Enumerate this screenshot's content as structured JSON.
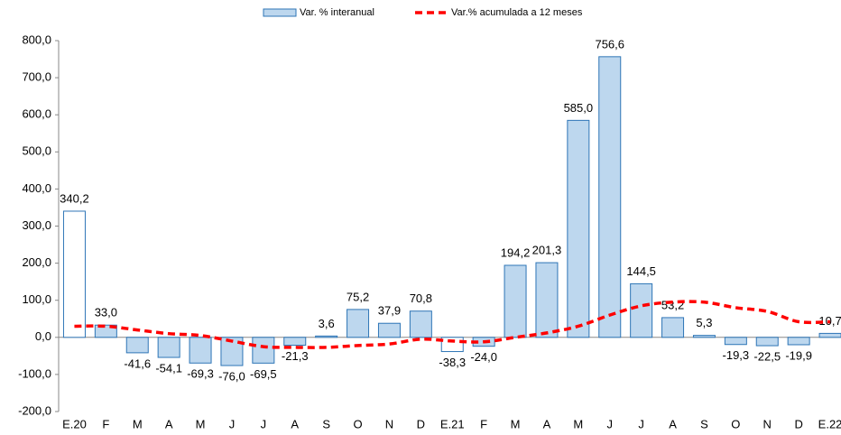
{
  "chart_data": {
    "type": "bar",
    "categories": [
      "E.20",
      "F",
      "M",
      "A",
      "M",
      "J",
      "J",
      "A",
      "S",
      "O",
      "N",
      "D",
      "E.21",
      "F",
      "M",
      "A",
      "M",
      "J",
      "J",
      "A",
      "S",
      "O",
      "N",
      "D",
      "E.22"
    ],
    "series": [
      {
        "name": "Var. % interanual",
        "type": "bar",
        "color": "#bdd7ee",
        "edge_color": "#2e75b6",
        "colors": [
          "#ffffff",
          "#bdd7ee",
          "#bdd7ee",
          "#bdd7ee",
          "#bdd7ee",
          "#bdd7ee",
          "#bdd7ee",
          "#bdd7ee",
          "#bdd7ee",
          "#bdd7ee",
          "#bdd7ee",
          "#bdd7ee",
          "#ffffff",
          "#bdd7ee",
          "#bdd7ee",
          "#bdd7ee",
          "#bdd7ee",
          "#bdd7ee",
          "#bdd7ee",
          "#bdd7ee",
          "#bdd7ee",
          "#bdd7ee",
          "#bdd7ee",
          "#bdd7ee",
          "#bdd7ee"
        ],
        "values": [
          340.2,
          33.0,
          -41.6,
          -54.1,
          -69.3,
          -76.0,
          -69.5,
          -21.3,
          3.6,
          75.2,
          37.9,
          70.8,
          -38.3,
          -24.0,
          194.2,
          201.3,
          585.0,
          756.6,
          144.5,
          53.2,
          5.3,
          -19.3,
          -22.5,
          -19.9,
          10.7
        ],
        "value_labels": [
          "340,2",
          "33,0",
          "-41,6",
          "-54,1",
          "-69,3",
          "-76,0",
          "-69,5",
          "-21,3",
          "3,6",
          "75,2",
          "37,9",
          "70,8",
          "-38,3",
          "-24,0",
          "194,2",
          "201,3",
          "585,0",
          "756,6",
          "144,5",
          "53,2",
          "5,3",
          "-19,3",
          "-22,5",
          "-19,9",
          "10,7"
        ]
      },
      {
        "name": "Var.% acumulada a 12 meses",
        "type": "line",
        "color": "#ff0000",
        "dashed": true,
        "values": [
          30,
          30,
          20,
          10,
          5,
          -10,
          -25,
          -27,
          -27,
          -22,
          -18,
          -5,
          -10,
          -12,
          0,
          12,
          30,
          60,
          85,
          95,
          95,
          80,
          70,
          42,
          42
        ]
      }
    ],
    "ylim": [
      -200,
      800
    ],
    "yticks": [
      {
        "value": -200,
        "label": "-200,0"
      },
      {
        "value": -100,
        "label": "-100,0"
      },
      {
        "value": 0,
        "label": "0,0"
      },
      {
        "value": 100,
        "label": "100,0"
      },
      {
        "value": 200,
        "label": "200,0"
      },
      {
        "value": 300,
        "label": "300,0"
      },
      {
        "value": 400,
        "label": "400,0"
      },
      {
        "value": 500,
        "label": "500,0"
      },
      {
        "value": 600,
        "label": "600,0"
      },
      {
        "value": 700,
        "label": "700,0"
      },
      {
        "value": 800,
        "label": "800,0"
      }
    ],
    "legend": "top"
  }
}
